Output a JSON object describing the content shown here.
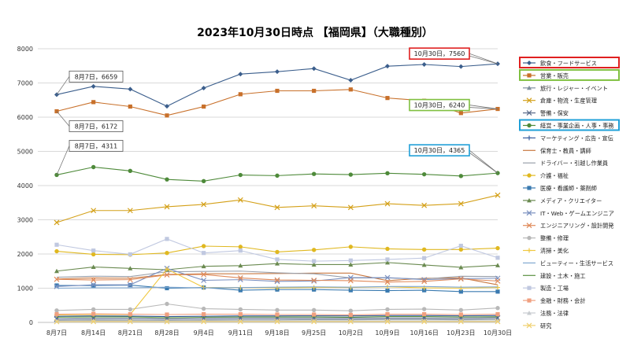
{
  "chart_data": {
    "type": "line",
    "title": "2023年10月30日時点 【福岡県】（大職種別）",
    "xlabel": "",
    "ylabel": "",
    "ylim": [
      0,
      8000
    ],
    "yticks": [
      0,
      1000,
      2000,
      3000,
      4000,
      5000,
      6000,
      7000,
      8000
    ],
    "grid": true,
    "legend_position": "right",
    "categories": [
      "8月7日",
      "8月14日",
      "8月21日",
      "8月28日",
      "9月4日",
      "9月11日",
      "9月18日",
      "9月25日",
      "10月2日",
      "10月9日",
      "10月16日",
      "10月23日",
      "10月30日"
    ],
    "series": [
      {
        "name": "飲食・フードサービス",
        "color": "#3b5e8c",
        "marker": "diamond",
        "values": [
          6659,
          6900,
          6820,
          6320,
          6850,
          7260,
          7330,
          7420,
          7080,
          7490,
          7540,
          7480,
          7560
        ]
      },
      {
        "name": "営業・販売",
        "color": "#c8702a",
        "marker": "square",
        "values": [
          6172,
          6440,
          6310,
          6050,
          6310,
          6670,
          6770,
          6770,
          6810,
          6560,
          6480,
          6120,
          6240
        ]
      },
      {
        "name": "旅行・レジャー・イベント",
        "color": "#8090a0",
        "marker": "triangle",
        "values": [
          60,
          70,
          65,
          60,
          70,
          75,
          75,
          80,
          80,
          85,
          85,
          80,
          85
        ]
      },
      {
        "name": "倉庫・物流・生産管理",
        "color": "#d4a018",
        "marker": "x",
        "values": [
          2920,
          3270,
          3270,
          3380,
          3450,
          3580,
          3360,
          3410,
          3360,
          3470,
          3420,
          3470,
          3720
        ]
      },
      {
        "name": "警備・保安",
        "color": "#5a6a8a",
        "marker": "x",
        "values": [
          100,
          110,
          110,
          100,
          110,
          120,
          120,
          120,
          120,
          125,
          125,
          120,
          130
        ]
      },
      {
        "name": "経営・事業企画・人事・事務",
        "color": "#4e8a3a",
        "marker": "circle",
        "values": [
          4311,
          4540,
          4430,
          4180,
          4130,
          4310,
          4290,
          4340,
          4320,
          4360,
          4330,
          4280,
          4365
        ]
      },
      {
        "name": "マーケティング・広告・宣伝",
        "color": "#3a5fa0",
        "marker": "plus",
        "values": [
          180,
          190,
          185,
          170,
          180,
          190,
          190,
          195,
          190,
          200,
          200,
          195,
          200
        ]
      },
      {
        "name": "保育士・教員・講師",
        "color": "#c87840",
        "marker": "none",
        "values": [
          1270,
          1300,
          1290,
          1400,
          1420,
          1420,
          1430,
          1440,
          1440,
          1220,
          1290,
          1300,
          1100
        ]
      },
      {
        "name": "ドライバー・引越し作業員",
        "color": "#9aa0aa",
        "marker": "none",
        "values": [
          1320,
          1350,
          1340,
          1480,
          1490,
          1500,
          1450,
          1420,
          1300,
          1300,
          1270,
          1350,
          1340
        ]
      },
      {
        "name": "介護・福祉",
        "color": "#e0b820",
        "marker": "circle",
        "values": [
          2080,
          1990,
          1980,
          2030,
          2230,
          2210,
          2060,
          2120,
          2210,
          2150,
          2130,
          2130,
          2170
        ]
      },
      {
        "name": "医療・看護師・薬剤師",
        "color": "#3a7ab0",
        "marker": "square",
        "values": [
          1080,
          1080,
          1090,
          1000,
          1020,
          940,
          960,
          960,
          940,
          930,
          940,
          900,
          900
        ]
      },
      {
        "name": "メディア・クリエイター",
        "color": "#6a8a50",
        "marker": "triangle",
        "values": [
          1500,
          1620,
          1580,
          1540,
          1640,
          1660,
          1720,
          1690,
          1690,
          1750,
          1680,
          1610,
          1670
        ]
      },
      {
        "name": "IT・Web・ゲームエンジニア",
        "color": "#7a90c0",
        "marker": "x",
        "values": [
          1050,
          1100,
          1100,
          1580,
          1230,
          1250,
          1200,
          1210,
          1310,
          1310,
          1250,
          1280,
          1290
        ]
      },
      {
        "name": "エンジニアリング・設計開発",
        "color": "#e08a5a",
        "marker": "x",
        "values": [
          1260,
          1240,
          1250,
          1390,
          1400,
          1300,
          1240,
          1230,
          1220,
          1180,
          1200,
          1270,
          1210
        ]
      },
      {
        "name": "整備・修理",
        "color": "#b8b8b8",
        "marker": "circle",
        "values": [
          350,
          380,
          380,
          540,
          400,
          380,
          360,
          360,
          340,
          380,
          390,
          360,
          420
        ]
      },
      {
        "name": "清掃・美化",
        "color": "#f0c840",
        "marker": "plus",
        "values": [
          220,
          230,
          230,
          1560,
          1020,
          1020,
          1010,
          1020,
          1020,
          1040,
          1010,
          1000,
          1020
        ]
      },
      {
        "name": "ビューティー・生活サービス",
        "color": "#80a8d0",
        "marker": "none",
        "values": [
          1000,
          1010,
          1010,
          1030,
          1010,
          1020,
          1030,
          1040,
          1030,
          1050,
          1050,
          1030,
          1040
        ]
      },
      {
        "name": "建設・土木・施工",
        "color": "#5a9040",
        "marker": "none",
        "values": [
          150,
          160,
          160,
          140,
          150,
          160,
          160,
          160,
          150,
          170,
          170,
          160,
          165
        ]
      },
      {
        "name": "製造・工場",
        "color": "#c0c8e0",
        "marker": "square",
        "values": [
          2270,
          2100,
          1990,
          2440,
          2030,
          2100,
          1840,
          1790,
          1810,
          1840,
          1880,
          2240,
          1890
        ]
      },
      {
        "name": "金融・財務・会計",
        "color": "#f0a080",
        "marker": "square",
        "values": [
          240,
          250,
          240,
          230,
          240,
          240,
          230,
          230,
          220,
          240,
          240,
          230,
          240
        ]
      },
      {
        "name": "法務・法律",
        "color": "#c8ccd0",
        "marker": "triangle",
        "values": [
          40,
          45,
          45,
          40,
          45,
          45,
          45,
          45,
          45,
          45,
          45,
          45,
          45
        ]
      },
      {
        "name": "研究",
        "color": "#f0d070",
        "marker": "x",
        "values": [
          20,
          25,
          25,
          20,
          25,
          25,
          25,
          25,
          25,
          25,
          25,
          25,
          25
        ]
      }
    ],
    "annotations": [
      {
        "text": "8月7日，6659",
        "series": 0,
        "index": 0,
        "box_color": "#555555"
      },
      {
        "text": "8月7日，6172",
        "series": 1,
        "index": 0,
        "box_color": "#555555"
      },
      {
        "text": "8月7日，4311",
        "series": 5,
        "index": 0,
        "box_color": "#555555"
      },
      {
        "text": "10月30日，7560",
        "series": 0,
        "index": 12,
        "box_color": "#e02020"
      },
      {
        "text": "10月30日，6240",
        "series": 1,
        "index": 12,
        "box_color": "#80c040"
      },
      {
        "text": "10月30日，4365",
        "series": 5,
        "index": 12,
        "box_color": "#20a0d8"
      }
    ],
    "legend_highlights": [
      {
        "series": 0,
        "color": "#e02020"
      },
      {
        "series": 1,
        "color": "#80c040"
      },
      {
        "series": 5,
        "color": "#20a0d8"
      }
    ]
  }
}
